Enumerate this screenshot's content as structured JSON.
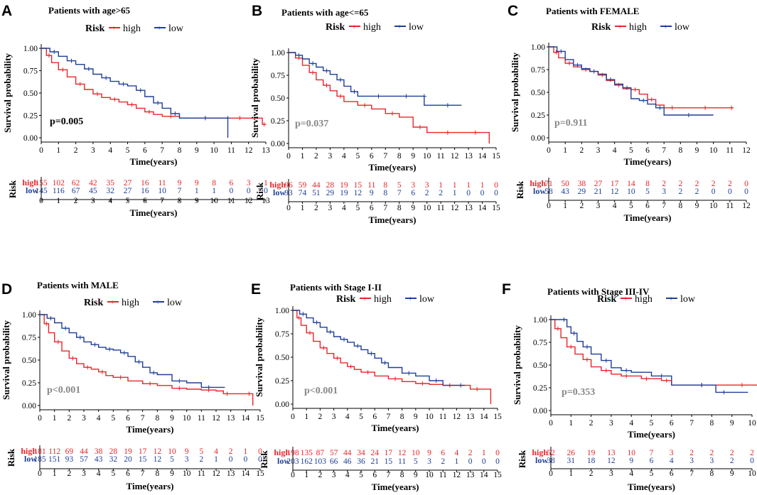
{
  "colors": {
    "high": "#e8262a",
    "low": "#1f3f98",
    "axis": "#000000",
    "pval": "#888888"
  },
  "chart_data": [
    {
      "type": "line",
      "panel_label": "A",
      "title": "Patients with age>65",
      "legend_title": "Risk",
      "legend": [
        "high",
        "low"
      ],
      "xlabel": "Time(years)",
      "ylabel": "Survival probability",
      "xlim": [
        0,
        13
      ],
      "ylim": [
        0,
        1
      ],
      "xticks": [
        "0",
        "1",
        "2",
        "3",
        "4",
        "5",
        "6",
        "7",
        "8",
        "9",
        "10",
        "11",
        "12",
        "13"
      ],
      "yticks": [
        "0.00",
        "0.25",
        "0.50",
        "0.75",
        "1.00"
      ],
      "pvalue": "p=0.005",
      "pvalue_dark": true,
      "series": [
        {
          "name": "high",
          "x": [
            0,
            0.3,
            0.6,
            1,
            1.5,
            2,
            2.5,
            3,
            3.5,
            4,
            4.5,
            5,
            5.5,
            6,
            6.5,
            7,
            8,
            9,
            10,
            11,
            12,
            12.8,
            13
          ],
          "y": [
            1,
            0.92,
            0.84,
            0.76,
            0.68,
            0.6,
            0.54,
            0.49,
            0.45,
            0.43,
            0.4,
            0.37,
            0.33,
            0.29,
            0.26,
            0.24,
            0.22,
            0.22,
            0.22,
            0.22,
            0.22,
            0.15,
            0.15
          ]
        },
        {
          "name": "low",
          "x": [
            0,
            0.5,
            1,
            1.5,
            2,
            2.5,
            3,
            3.5,
            4,
            4.5,
            5,
            5.5,
            6,
            6.5,
            7,
            7.5,
            8,
            9,
            10,
            10.8,
            10.8
          ],
          "y": [
            1,
            0.96,
            0.91,
            0.86,
            0.82,
            0.77,
            0.71,
            0.67,
            0.63,
            0.6,
            0.58,
            0.53,
            0.46,
            0.39,
            0.33,
            0.27,
            0.22,
            0.22,
            0.22,
            0.22,
            0.0
          ]
        }
      ],
      "risk_table": {
        "label": "Risk",
        "xlabel": "Time(years)",
        "rows": [
          {
            "name": "high",
            "values": [
              "155",
              "102",
              "62",
              "42",
              "35",
              "27",
              "16",
              "11",
              "9",
              "9",
              "8",
              "6",
              "3",
              "1"
            ]
          },
          {
            "name": "low",
            "values": [
              "145",
              "116",
              "67",
              "45",
              "32",
              "27",
              "16",
              "10",
              "7",
              "1",
              "1",
              "0",
              "0",
              "0"
            ]
          }
        ]
      }
    },
    {
      "type": "line",
      "panel_label": "B",
      "title": "Patients with age<=65",
      "legend_title": "Risk",
      "legend": [
        "high",
        "low"
      ],
      "xlabel": "Time(years)",
      "ylabel": "Survival probability",
      "xlim": [
        0,
        15
      ],
      "ylim": [
        0,
        1
      ],
      "xticks": [
        "0",
        "1",
        "2",
        "3",
        "4",
        "5",
        "6",
        "7",
        "8",
        "9",
        "10",
        "11",
        "12",
        "13",
        "14",
        "15"
      ],
      "yticks": [
        "0.00",
        "0.25",
        "0.50",
        "0.75",
        "1.00"
      ],
      "pvalue": "p=0.037",
      "pvalue_dark": false,
      "series": [
        {
          "name": "high",
          "x": [
            0,
            0.5,
            1,
            1.5,
            2,
            2.5,
            3,
            3.5,
            4,
            5,
            6,
            7,
            8,
            9,
            10,
            11,
            12,
            13,
            14,
            14.5
          ],
          "y": [
            1,
            0.94,
            0.86,
            0.78,
            0.7,
            0.64,
            0.58,
            0.52,
            0.46,
            0.42,
            0.38,
            0.33,
            0.29,
            0.18,
            0.12,
            0.12,
            0.12,
            0.12,
            0.12,
            0.0
          ]
        },
        {
          "name": "low",
          "x": [
            0,
            0.5,
            1,
            1.5,
            2,
            2.5,
            3,
            3.5,
            4,
            4.5,
            5,
            6,
            7,
            8,
            9,
            9.8,
            9.8,
            11,
            12,
            12.5
          ],
          "y": [
            1,
            0.97,
            0.93,
            0.88,
            0.84,
            0.8,
            0.76,
            0.7,
            0.63,
            0.57,
            0.52,
            0.52,
            0.52,
            0.52,
            0.52,
            0.52,
            0.42,
            0.42,
            0.42,
            0.42
          ]
        }
      ],
      "risk_table": {
        "label": "Risk",
        "xlabel": "Time(years)",
        "rows": [
          {
            "name": "high",
            "values": [
              "96",
              "59",
              "44",
              "28",
              "19",
              "15",
              "11",
              "8",
              "5",
              "3",
              "3",
              "1",
              "1",
              "1",
              "1",
              "0"
            ]
          },
          {
            "name": "low",
            "values": [
              "93",
              "74",
              "51",
              "29",
              "19",
              "12",
              "9",
              "8",
              "7",
              "6",
              "2",
              "2",
              "1",
              "0",
              "0",
              "0"
            ]
          }
        ]
      }
    },
    {
      "type": "line",
      "panel_label": "C",
      "title": "Patients with FEMALE",
      "legend_title": "Risk",
      "legend": [
        "high",
        "low"
      ],
      "xlabel": "Time(years)",
      "ylabel": "Survival probability",
      "xlim": [
        0,
        12
      ],
      "ylim": [
        0,
        1
      ],
      "xticks": [
        "0",
        "1",
        "2",
        "3",
        "4",
        "5",
        "6",
        "7",
        "8",
        "9",
        "10",
        "11",
        "12"
      ],
      "yticks": [
        "0.00",
        "0.25",
        "0.50",
        "0.75",
        "1.00"
      ],
      "pvalue": "p=0.911",
      "pvalue_dark": false,
      "series": [
        {
          "name": "high",
          "x": [
            0,
            0.3,
            0.6,
            1,
            1.5,
            2,
            2.5,
            3,
            3.5,
            4,
            4.5,
            5,
            5.5,
            6,
            6.5,
            7,
            8,
            9,
            10,
            11,
            11.2
          ],
          "y": [
            1,
            0.94,
            0.88,
            0.82,
            0.78,
            0.75,
            0.73,
            0.69,
            0.63,
            0.58,
            0.54,
            0.53,
            0.48,
            0.42,
            0.36,
            0.33,
            0.33,
            0.33,
            0.33,
            0.33,
            0.33
          ]
        },
        {
          "name": "low",
          "x": [
            0,
            0.5,
            1,
            1.5,
            2,
            2.5,
            3,
            3.5,
            4,
            4.5,
            5,
            5.5,
            6,
            6.5,
            7,
            8,
            9,
            10
          ],
          "y": [
            1,
            0.95,
            0.86,
            0.8,
            0.76,
            0.73,
            0.7,
            0.64,
            0.59,
            0.55,
            0.43,
            0.41,
            0.37,
            0.33,
            0.25,
            0.25,
            0.25,
            0.25
          ]
        }
      ],
      "risk_table": {
        "label": "Risk",
        "xlabel": "Time(years)",
        "rows": [
          {
            "name": "high",
            "values": [
              "71",
              "50",
              "38",
              "27",
              "17",
              "14",
              "8",
              "2",
              "2",
              "2",
              "2",
              "2",
              "0"
            ]
          },
          {
            "name": "low",
            "values": [
              "58",
              "43",
              "29",
              "21",
              "12",
              "10",
              "5",
              "3",
              "2",
              "2",
              "0",
              "0",
              "0"
            ]
          }
        ]
      }
    },
    {
      "type": "line",
      "panel_label": "D",
      "title": "Patients with MALE",
      "legend_title": "Risk",
      "legend": [
        "high",
        "low"
      ],
      "xlabel": "Time(years)",
      "ylabel": "Survival probability",
      "xlim": [
        0,
        15
      ],
      "ylim": [
        0,
        1
      ],
      "xticks": [
        "0",
        "1",
        "2",
        "3",
        "4",
        "5",
        "6",
        "7",
        "8",
        "9",
        "10",
        "11",
        "12",
        "13",
        "14",
        "15"
      ],
      "yticks": [
        "0.00",
        "0.25",
        "0.50",
        "0.75",
        "1.00"
      ],
      "pvalue": "p<0.001",
      "pvalue_dark": false,
      "series": [
        {
          "name": "high",
          "x": [
            0,
            0.3,
            0.6,
            1,
            1.5,
            2,
            2.5,
            3,
            3.5,
            4,
            4.5,
            5,
            6,
            7,
            8,
            9,
            10,
            11,
            12,
            12.5,
            13,
            14,
            14.5
          ],
          "y": [
            1,
            0.9,
            0.8,
            0.7,
            0.6,
            0.52,
            0.46,
            0.42,
            0.4,
            0.37,
            0.33,
            0.31,
            0.27,
            0.24,
            0.22,
            0.19,
            0.18,
            0.17,
            0.16,
            0.13,
            0.13,
            0.13,
            0.0
          ]
        },
        {
          "name": "low",
          "x": [
            0,
            0.5,
            1,
            1.5,
            2,
            2.5,
            3,
            3.5,
            4,
            4.5,
            5,
            5.5,
            6,
            6.5,
            7,
            7.5,
            8,
            9,
            10,
            11,
            12,
            12.6
          ],
          "y": [
            1,
            0.96,
            0.91,
            0.85,
            0.8,
            0.75,
            0.7,
            0.67,
            0.64,
            0.62,
            0.61,
            0.58,
            0.54,
            0.48,
            0.42,
            0.36,
            0.34,
            0.27,
            0.25,
            0.2,
            0.2,
            0.2
          ]
        }
      ],
      "risk_table": {
        "label": "Risk",
        "xlabel": "Time(years)",
        "rows": [
          {
            "name": "high",
            "values": [
              "181",
              "112",
              "69",
              "44",
              "38",
              "28",
              "19",
              "17",
              "12",
              "10",
              "9",
              "5",
              "4",
              "2",
              "1",
              "0"
            ]
          },
          {
            "name": "low",
            "values": [
              "185",
              "151",
              "93",
              "57",
              "43",
              "32",
              "20",
              "15",
              "12",
              "5",
              "3",
              "2",
              "1",
              "0",
              "0",
              "0"
            ]
          }
        ]
      }
    },
    {
      "type": "line",
      "panel_label": "E",
      "title": "Patients with Stage I-II",
      "legend_title": "Risk",
      "legend": [
        "high",
        "low"
      ],
      "xlabel": "Time(years)",
      "ylabel": "Survival probability",
      "xlim": [
        0,
        15
      ],
      "ylim": [
        0,
        1
      ],
      "xticks": [
        "0",
        "1",
        "2",
        "3",
        "4",
        "5",
        "6",
        "7",
        "8",
        "9",
        "10",
        "11",
        "12",
        "13",
        "14",
        "15"
      ],
      "yticks": [
        "0.00",
        "0.25",
        "0.50",
        "0.75",
        "1.00"
      ],
      "pvalue": "p<0.001",
      "pvalue_dark": false,
      "series": [
        {
          "name": "high",
          "x": [
            0,
            0.3,
            0.6,
            1,
            1.5,
            2,
            2.5,
            3,
            3.5,
            4,
            4.5,
            5,
            6,
            7,
            8,
            9,
            10,
            11,
            12,
            13,
            14,
            14.5
          ],
          "y": [
            1,
            0.92,
            0.84,
            0.76,
            0.67,
            0.6,
            0.54,
            0.49,
            0.44,
            0.4,
            0.37,
            0.34,
            0.3,
            0.27,
            0.24,
            0.22,
            0.21,
            0.2,
            0.2,
            0.16,
            0.16,
            0.0
          ]
        },
        {
          "name": "low",
          "x": [
            0,
            0.5,
            1,
            1.5,
            2,
            2.5,
            3,
            3.5,
            4,
            4.5,
            5,
            5.5,
            6,
            6.5,
            7,
            8,
            9,
            10,
            11,
            12,
            12.6
          ],
          "y": [
            1,
            0.96,
            0.92,
            0.87,
            0.82,
            0.77,
            0.72,
            0.69,
            0.66,
            0.62,
            0.58,
            0.54,
            0.49,
            0.44,
            0.39,
            0.33,
            0.3,
            0.25,
            0.2,
            0.2,
            0.2
          ]
        }
      ],
      "risk_table": {
        "label": "Risk",
        "xlabel": "Time(years)",
        "rows": [
          {
            "name": "high",
            "values": [
              "198",
              "135",
              "87",
              "57",
              "44",
              "34",
              "24",
              "17",
              "12",
              "10",
              "9",
              "6",
              "4",
              "2",
              "1",
              "0"
            ]
          },
          {
            "name": "low",
            "values": [
              "203",
              "162",
              "103",
              "66",
              "46",
              "36",
              "21",
              "15",
              "11",
              "5",
              "3",
              "2",
              "1",
              "0",
              "0",
              "0"
            ]
          }
        ]
      }
    },
    {
      "type": "line",
      "panel_label": "F",
      "title": "Patients with Stage III-IV",
      "legend_title": "Risk",
      "legend": [
        "high",
        "low"
      ],
      "xlabel": "Time(years)",
      "ylabel": "Survival probability",
      "xlim": [
        0,
        10
      ],
      "ylim": [
        0,
        1
      ],
      "xticks": [
        "0",
        "1",
        "2",
        "3",
        "4",
        "5",
        "6",
        "7",
        "8",
        "9",
        "10"
      ],
      "yticks": [
        "0.00",
        "0.25",
        "0.50",
        "0.75",
        "1.00"
      ],
      "pvalue": "p=0.353",
      "pvalue_dark": false,
      "series": [
        {
          "name": "high",
          "x": [
            0,
            0.2,
            0.5,
            0.8,
            1.2,
            1.6,
            2,
            2.5,
            3,
            3.5,
            4,
            4.5,
            5,
            5.5,
            6,
            7,
            8,
            9,
            10,
            10.3
          ],
          "y": [
            1,
            0.9,
            0.8,
            0.7,
            0.62,
            0.56,
            0.48,
            0.44,
            0.4,
            0.38,
            0.38,
            0.35,
            0.35,
            0.33,
            0.28,
            0.28,
            0.28,
            0.28,
            0.28,
            0.28
          ]
        },
        {
          "name": "low",
          "x": [
            0,
            0.5,
            0.8,
            1,
            1.3,
            1.6,
            2,
            2.5,
            3,
            3.5,
            4,
            5,
            6,
            7,
            8,
            8.2,
            9,
            9.8
          ],
          "y": [
            1,
            1,
            0.92,
            0.85,
            0.76,
            0.7,
            0.62,
            0.55,
            0.47,
            0.44,
            0.42,
            0.38,
            0.28,
            0.28,
            0.28,
            0.2,
            0.2,
            0.2
          ]
        }
      ],
      "risk_table": {
        "label": "Risk",
        "xlabel": "Time(years)",
        "rows": [
          {
            "name": "high",
            "values": [
              "52",
              "26",
              "19",
              "13",
              "10",
              "7",
              "3",
              "2",
              "2",
              "2",
              "2"
            ]
          },
          {
            "name": "low",
            "values": [
              "38",
              "31",
              "18",
              "12",
              "9",
              "6",
              "4",
              "3",
              "3",
              "2",
              "0"
            ]
          }
        ]
      }
    }
  ]
}
